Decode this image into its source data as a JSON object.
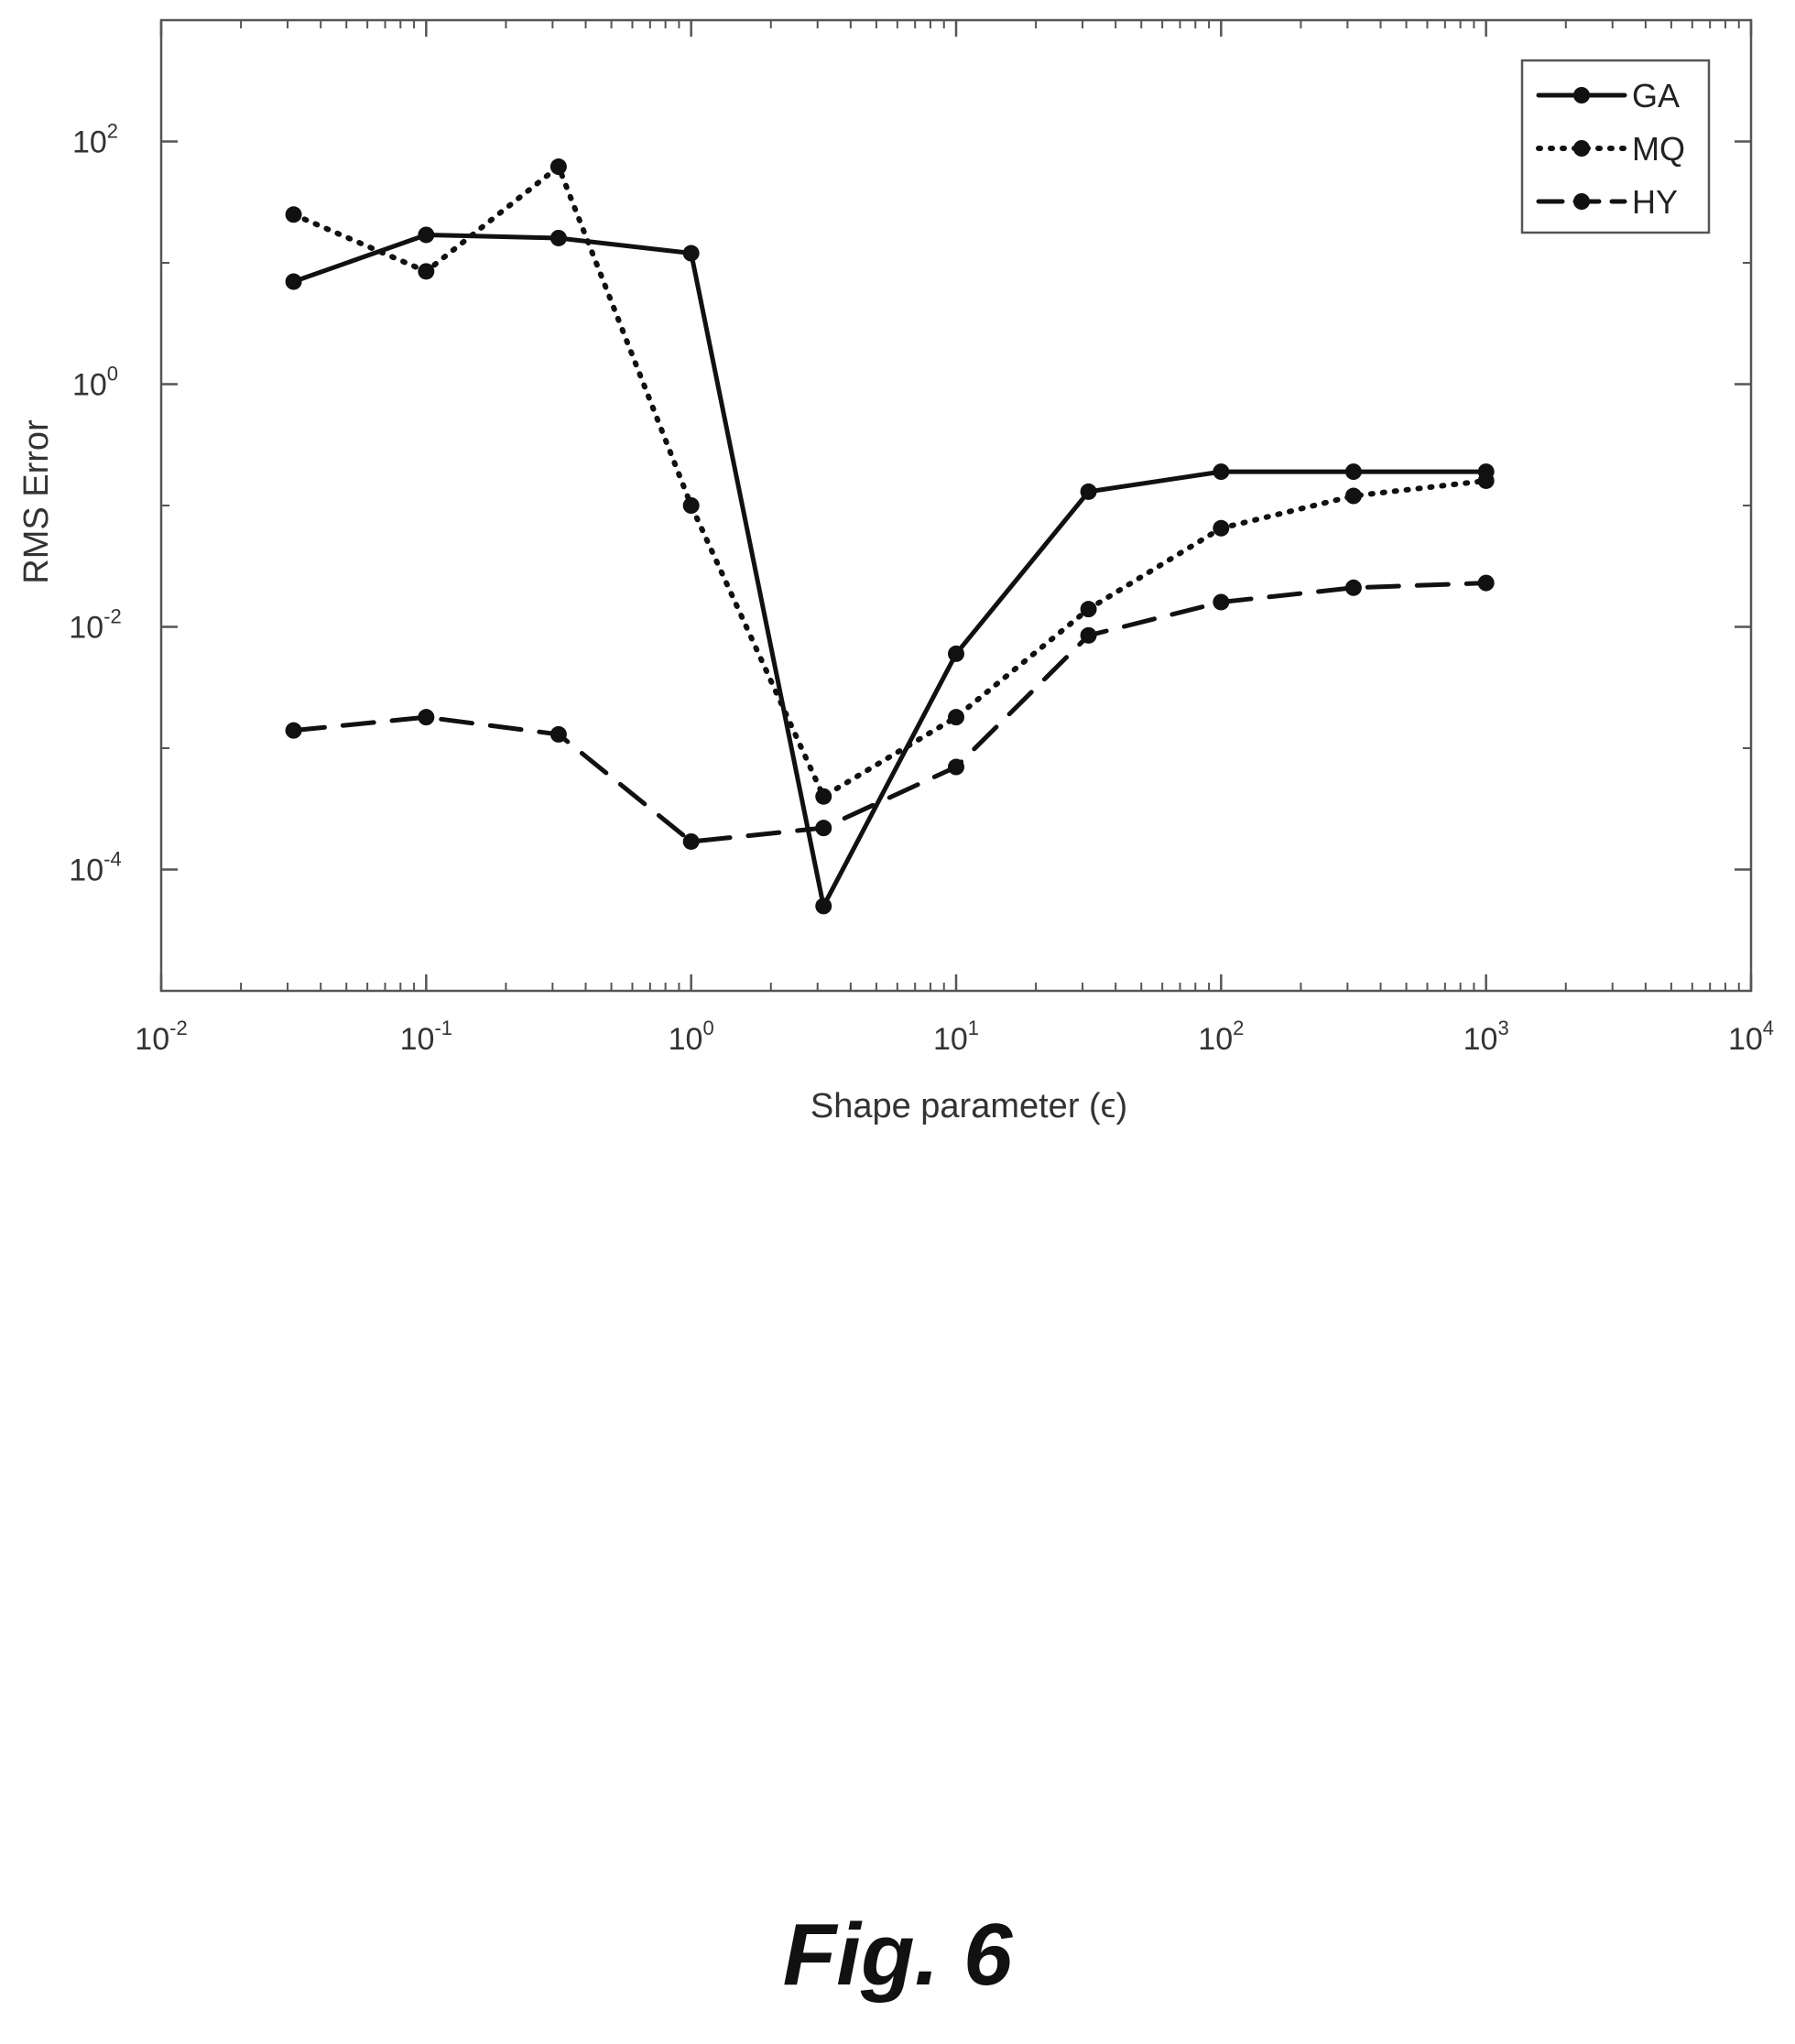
{
  "chart_data": {
    "type": "line",
    "xscale": "log",
    "yscale": "log",
    "xlim": [
      0.01,
      10000
    ],
    "ylim": [
      1e-05,
      1000
    ],
    "xlabel": "Shape parameter (ϵ)",
    "ylabel": "RMS Error",
    "x_ticks": [
      {
        "base": "10",
        "exp": "-2",
        "value": 0.01
      },
      {
        "base": "10",
        "exp": "-1",
        "value": 0.1
      },
      {
        "base": "10",
        "exp": "0",
        "value": 1
      },
      {
        "base": "10",
        "exp": "1",
        "value": 10
      },
      {
        "base": "10",
        "exp": "2",
        "value": 100
      },
      {
        "base": "10",
        "exp": "3",
        "value": 1000
      },
      {
        "base": "10",
        "exp": "4",
        "value": 10000
      }
    ],
    "y_ticks": [
      {
        "base": "10",
        "exp": "-4",
        "value": 0.0001
      },
      {
        "base": "10",
        "exp": "-2",
        "value": 0.01
      },
      {
        "base": "10",
        "exp": "0",
        "value": 1
      },
      {
        "base": "10",
        "exp": "2",
        "value": 100
      }
    ],
    "grid": false,
    "legend_position": "top-right",
    "x": [
      0.0316,
      0.1,
      0.316,
      1,
      3.16,
      10,
      31.6,
      100,
      316,
      1000
    ],
    "series": [
      {
        "name": "GA",
        "style": "solid",
        "values": [
          7,
          17,
          16,
          12,
          5e-05,
          0.006,
          0.13,
          0.19,
          0.19,
          0.19
        ]
      },
      {
        "name": "MQ",
        "style": "dotted",
        "values": [
          25,
          8.5,
          62,
          0.1,
          0.0004,
          0.0018,
          0.014,
          0.065,
          0.12,
          0.16
        ]
      },
      {
        "name": "HY",
        "style": "dashed",
        "values": [
          0.0014,
          0.0018,
          0.0013,
          0.00017,
          0.00022,
          0.0007,
          0.0085,
          0.016,
          0.021,
          0.023
        ]
      }
    ],
    "colors": {
      "line": "#111111",
      "frame": "#555555"
    }
  },
  "caption": "Fig. 6"
}
